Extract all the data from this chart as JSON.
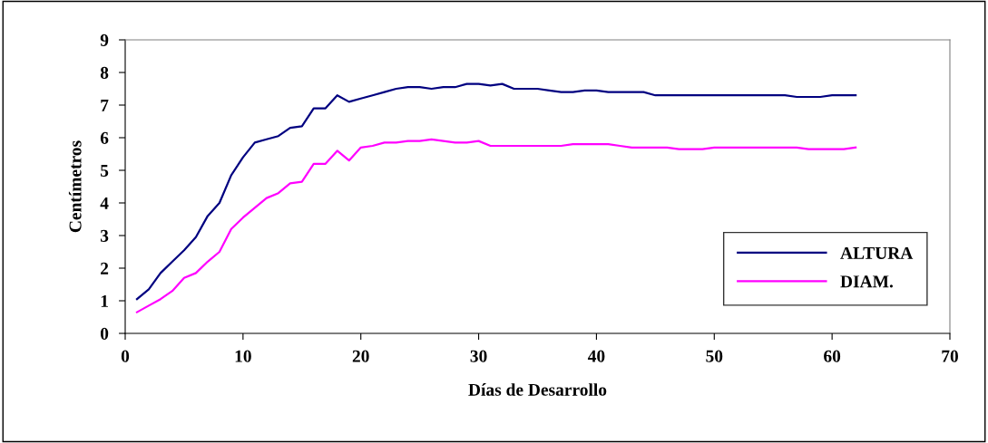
{
  "chart_data": {
    "type": "line",
    "xlabel": "Días de Desarrollo",
    "ylabel": "Centímetros",
    "x": [
      1,
      2,
      3,
      4,
      5,
      6,
      7,
      8,
      9,
      10,
      11,
      12,
      13,
      14,
      15,
      16,
      17,
      18,
      19,
      20,
      21,
      22,
      23,
      24,
      25,
      26,
      27,
      28,
      29,
      30,
      31,
      32,
      33,
      34,
      35,
      36,
      37,
      38,
      39,
      40,
      41,
      42,
      43,
      44,
      45,
      46,
      47,
      48,
      49,
      50,
      51,
      52,
      53,
      54,
      55,
      56,
      57,
      58,
      59,
      60,
      61,
      62
    ],
    "series": [
      {
        "name": "ALTURA",
        "color": "#000080",
        "values": [
          1.05,
          1.35,
          1.85,
          2.2,
          2.55,
          2.95,
          3.6,
          4.0,
          4.85,
          5.4,
          5.85,
          5.95,
          6.05,
          6.3,
          6.35,
          6.9,
          6.9,
          7.3,
          7.1,
          7.2,
          7.3,
          7.4,
          7.5,
          7.55,
          7.55,
          7.5,
          7.55,
          7.55,
          7.65,
          7.65,
          7.6,
          7.65,
          7.5,
          7.5,
          7.5,
          7.45,
          7.4,
          7.4,
          7.45,
          7.45,
          7.4,
          7.4,
          7.4,
          7.4,
          7.3,
          7.3,
          7.3,
          7.3,
          7.3,
          7.3,
          7.3,
          7.3,
          7.3,
          7.3,
          7.3,
          7.3,
          7.25,
          7.25,
          7.25,
          7.3,
          7.3,
          7.3
        ]
      },
      {
        "name": "DIAM.",
        "color": "#ff00ff",
        "values": [
          0.65,
          0.85,
          1.05,
          1.3,
          1.7,
          1.85,
          2.2,
          2.5,
          3.2,
          3.55,
          3.85,
          4.15,
          4.3,
          4.6,
          4.65,
          5.2,
          5.2,
          5.6,
          5.3,
          5.7,
          5.75,
          5.85,
          5.85,
          5.9,
          5.9,
          5.95,
          5.9,
          5.85,
          5.85,
          5.9,
          5.75,
          5.75,
          5.75,
          5.75,
          5.75,
          5.75,
          5.75,
          5.8,
          5.8,
          5.8,
          5.8,
          5.75,
          5.7,
          5.7,
          5.7,
          5.7,
          5.65,
          5.65,
          5.65,
          5.7,
          5.7,
          5.7,
          5.7,
          5.7,
          5.7,
          5.7,
          5.7,
          5.65,
          5.65,
          5.65,
          5.65,
          5.7
        ]
      }
    ],
    "xlim": [
      0,
      70
    ],
    "xticks": [
      0,
      10,
      20,
      30,
      40,
      50,
      60,
      70
    ],
    "ylim": [
      0,
      9
    ],
    "yticks": [
      0,
      1,
      2,
      3,
      4,
      5,
      6,
      7,
      8,
      9
    ],
    "grid": false,
    "legend": "right"
  }
}
